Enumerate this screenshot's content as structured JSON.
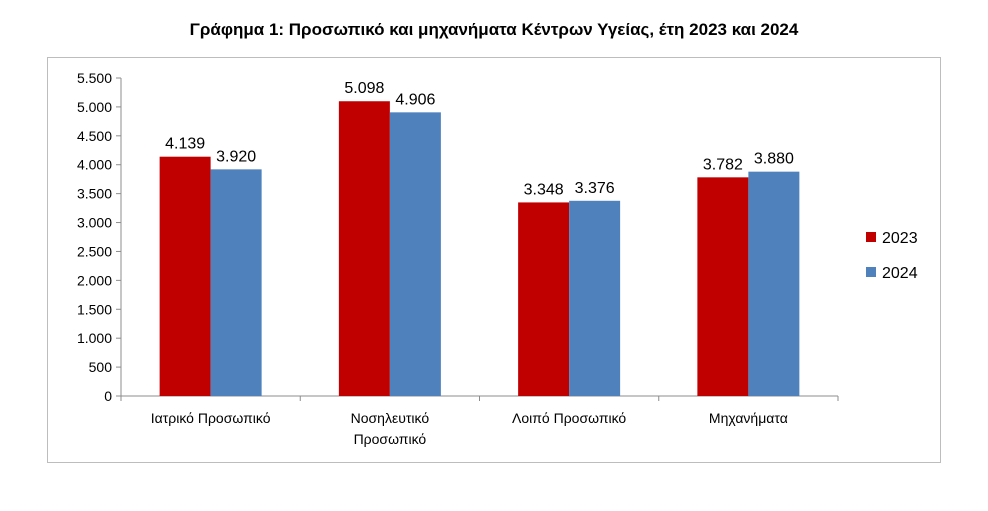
{
  "chart_data": {
    "type": "bar",
    "title": "Γράφημα 1: Προσωπικό και μηχανήματα Κέντρων Υγείας, έτη 2023 και 2024",
    "categories": [
      [
        "Ιατρικό Προσωπικό"
      ],
      [
        "Νοσηλευτικό",
        "Προσωπικό"
      ],
      [
        "Λοιπό Προσωπικό"
      ],
      [
        "Μηχανήματα"
      ]
    ],
    "series": [
      {
        "name": "2023",
        "color": "#c00000",
        "values": [
          4139,
          5098,
          3348,
          3782
        ],
        "labels": [
          "4.139",
          "5.098",
          "3.348",
          "3.782"
        ]
      },
      {
        "name": "2024",
        "color": "#4f81bd",
        "values": [
          3920,
          4906,
          3376,
          3880
        ],
        "labels": [
          "3.920",
          "4.906",
          "3.376",
          "3.880"
        ]
      }
    ],
    "ylim": [
      0,
      5500
    ],
    "yticks": [
      0,
      500,
      1000,
      1500,
      2000,
      2500,
      3000,
      3500,
      4000,
      4500,
      5000,
      5500
    ],
    "ytick_labels": [
      "0",
      "500",
      "1.000",
      "1.500",
      "2.000",
      "2.500",
      "3.000",
      "3.500",
      "4.000",
      "4.500",
      "5.000",
      "5.500"
    ],
    "xlabel": "",
    "ylabel": "",
    "grid": false,
    "legend": "right"
  }
}
